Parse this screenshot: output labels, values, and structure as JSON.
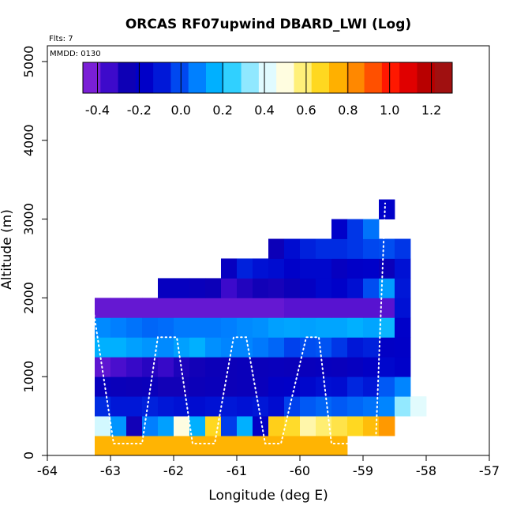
{
  "chart_data": {
    "type": "heatmap",
    "title": "ORCAS RF07upwind DBARD_LWI (Log)",
    "xlabel": "Longitude (deg E)",
    "ylabel": "Altitude (m)",
    "xlim": [
      -64,
      -57
    ],
    "ylim": [
      0,
      5200
    ],
    "xticks": [
      "-64",
      "-63",
      "-62",
      "-61",
      "-60",
      "-59",
      "-58",
      "-57"
    ],
    "yticks": [
      "0",
      "1000",
      "2000",
      "3000",
      "4000",
      "5000"
    ],
    "annotations": {
      "flights": "Flts: 7",
      "date": "MMDD: 0130"
    },
    "colorbar": {
      "range": [
        -0.47,
        1.3
      ],
      "ticks": [
        "-0.4",
        "-0.2",
        "0.0",
        "0.2",
        "0.4",
        "0.6",
        "0.8",
        "1.0",
        "1.2"
      ],
      "colors": [
        "#7a1fd6",
        "#3d0acb",
        "#0e00b5",
        "#0000c8",
        "#0018d8",
        "#0048f0",
        "#0080ff",
        "#00b0ff",
        "#30d0ff",
        "#90e8ff",
        "#e0fbff",
        "#fffde0",
        "#fff07a",
        "#ffd820",
        "#ffb000",
        "#ff8800",
        "#ff5000",
        "#ff1800",
        "#e00000",
        "#b80000",
        "#a01010"
      ]
    },
    "x_bin_width": 0.25,
    "altitude_bins": [
      0,
      250,
      500,
      750,
      1000,
      1250,
      1500,
      1750,
      2000,
      2250,
      2500,
      2750,
      3000,
      3250
    ],
    "rows": [
      {
        "alt_bottom": 0,
        "x_start": -63.25,
        "values": [
          0.76,
          0.76,
          0.76,
          0.76,
          0.76,
          0.76,
          0.76,
          0.76,
          0.76,
          0.76,
          0.76,
          0.76,
          0.76,
          0.76,
          0.76,
          0.76
        ]
      },
      {
        "alt_bottom": 250,
        "x_start": -63.25,
        "values": [
          0.4,
          0.1,
          -0.3,
          0.06,
          0.12,
          0.5,
          0.15,
          0.68,
          -0.05,
          0.15,
          -0.22,
          0.7,
          0.67,
          0.55,
          0.6,
          0.64,
          0.68,
          0.74,
          0.82
        ]
      },
      {
        "alt_bottom": 500,
        "x_start": -63.25,
        "values": [
          -0.08,
          -0.12,
          -0.12,
          -0.1,
          -0.12,
          -0.14,
          -0.16,
          -0.14,
          -0.12,
          -0.14,
          -0.12,
          -0.16,
          -0.04,
          0.0,
          0.02,
          0.0,
          0.02,
          0.04,
          0.07,
          0.33,
          0.42
        ]
      },
      {
        "alt_bottom": 750,
        "x_start": -63.25,
        "values": [
          -0.25,
          -0.27,
          -0.28,
          -0.27,
          -0.3,
          -0.3,
          -0.28,
          -0.27,
          -0.28,
          -0.27,
          -0.26,
          -0.22,
          -0.21,
          -0.18,
          -0.15,
          -0.16,
          -0.09,
          -0.12,
          0.0,
          0.07
        ]
      },
      {
        "alt_bottom": 1000,
        "x_start": -63.25,
        "values": [
          -0.43,
          -0.4,
          -0.37,
          -0.34,
          -0.37,
          -0.32,
          -0.3,
          -0.28,
          -0.28,
          -0.27,
          -0.27,
          -0.26,
          -0.27,
          -0.26,
          -0.25,
          -0.26,
          -0.24,
          -0.22,
          -0.18,
          -0.2
        ]
      },
      {
        "alt_bottom": 1250,
        "x_start": -63.25,
        "values": [
          0.15,
          0.15,
          0.12,
          0.1,
          0.08,
          0.12,
          0.15,
          0.09,
          0.07,
          0.07,
          0.05,
          0.02,
          -0.04,
          -0.02,
          -0.01,
          -0.06,
          -0.12,
          -0.1,
          -0.22,
          -0.21
        ]
      },
      {
        "alt_bottom": 1500,
        "x_start": -63.25,
        "values": [
          0.08,
          0.06,
          0.04,
          0.02,
          0.03,
          0.05,
          0.05,
          0.05,
          0.06,
          0.08,
          0.09,
          0.12,
          0.13,
          0.12,
          0.13,
          0.13,
          0.15,
          0.13,
          0.17,
          -0.2
        ]
      },
      {
        "alt_bottom": 1750,
        "x_start": -63.25,
        "values": [
          -0.44,
          -0.44,
          -0.44,
          -0.44,
          -0.44,
          -0.44,
          -0.44,
          -0.44,
          -0.44,
          -0.44,
          -0.44,
          -0.44,
          -0.42,
          -0.42,
          -0.42,
          -0.42,
          -0.42,
          -0.42,
          -0.42,
          -0.14
        ]
      },
      {
        "alt_bottom": 2000,
        "x_start": -62.25,
        "values": [
          -0.24,
          -0.24,
          -0.26,
          -0.28,
          -0.38,
          -0.33,
          -0.3,
          -0.31,
          -0.28,
          -0.23,
          -0.18,
          -0.2,
          -0.15,
          -0.02,
          0.11,
          -0.12
        ]
      },
      {
        "alt_bottom": 2250,
        "x_start": -61.25,
        "values": [
          -0.24,
          -0.1,
          -0.14,
          -0.16,
          -0.2,
          -0.18,
          -0.18,
          -0.24,
          -0.21,
          -0.2,
          -0.27,
          -0.14
        ]
      },
      {
        "alt_bottom": 2500,
        "x_start": -60.5,
        "values": [
          -0.28,
          -0.16,
          -0.1,
          -0.08,
          -0.08,
          -0.06,
          -0.03,
          -0.02,
          -0.06
        ]
      },
      {
        "alt_bottom": 2750,
        "x_start": -59.5,
        "values": [
          -0.2,
          -0.06,
          0.04
        ]
      },
      {
        "alt_bottom": 3000,
        "x_start": -58.75,
        "values": [
          -0.2
        ]
      }
    ],
    "flight_track_altitudes": [
      150,
      1500,
      150,
      1500,
      150,
      1500,
      150,
      3200
    ]
  }
}
